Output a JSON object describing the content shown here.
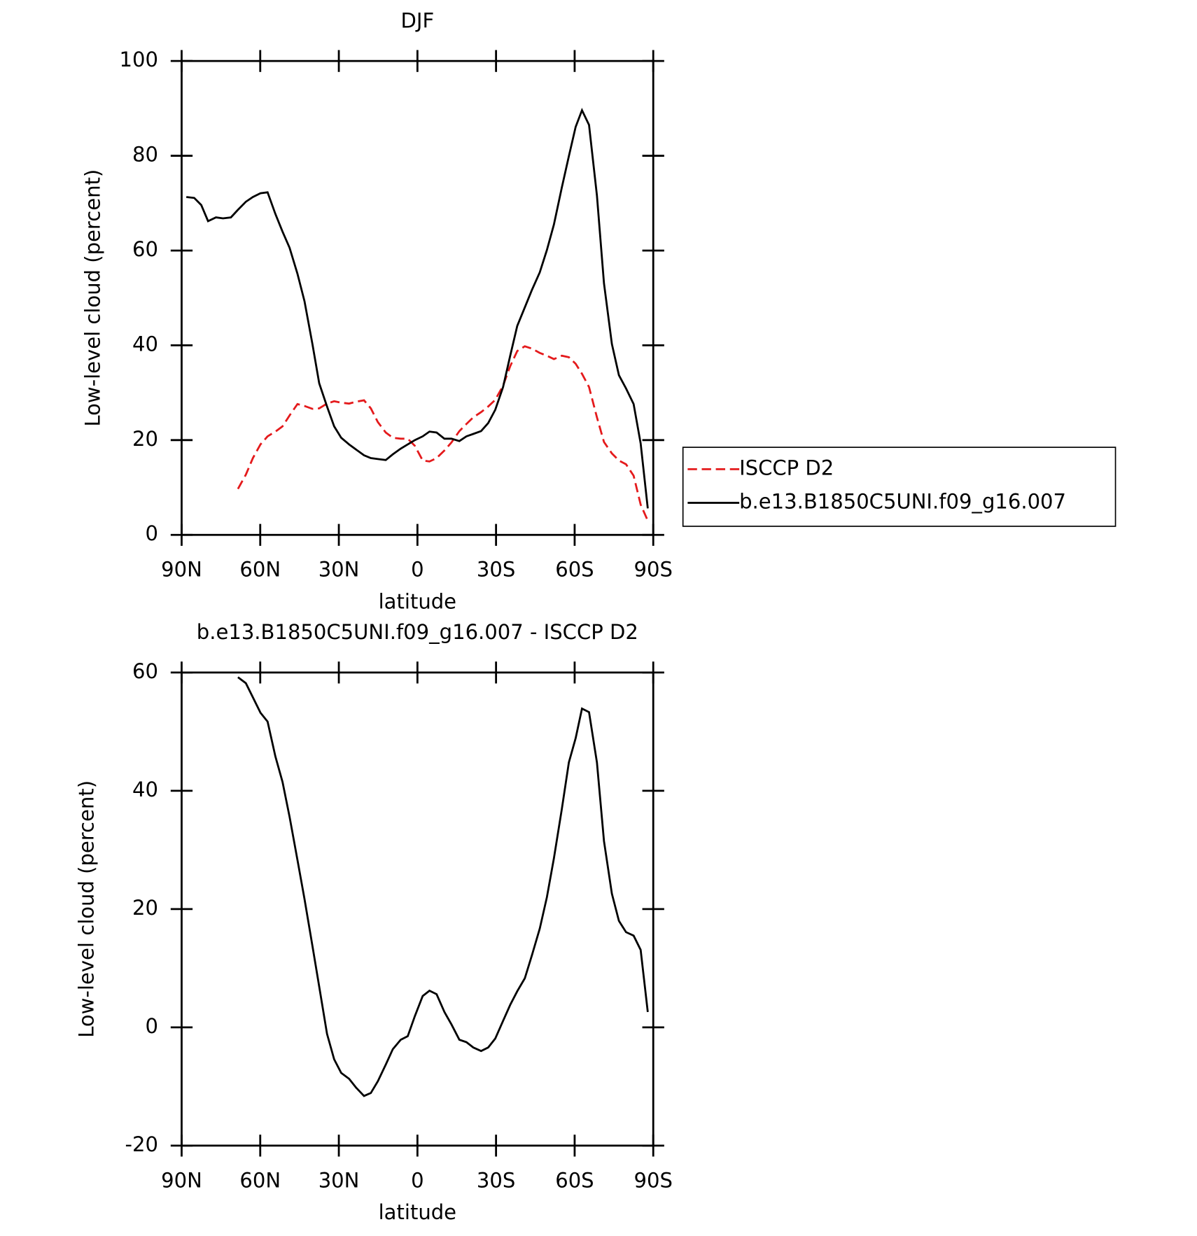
{
  "chart_data": [
    {
      "type": "line",
      "title": "DJF",
      "xlabel": "latitude",
      "ylabel": "Low-level cloud (percent)",
      "xlim": [
        90,
        -90
      ],
      "ylim": [
        0,
        100
      ],
      "xticks": [
        {
          "value": 90,
          "label": "90N"
        },
        {
          "value": 60,
          "label": "60N"
        },
        {
          "value": 30,
          "label": "30N"
        },
        0,
        {
          "value": -30,
          "label": "30S"
        },
        {
          "value": -60,
          "label": "60S"
        },
        {
          "value": -90,
          "label": "90S"
        }
      ],
      "yticks": [
        0,
        20,
        40,
        60,
        80,
        100
      ],
      "legend": "right",
      "series": [
        {
          "name": "ISCCP D2",
          "color": "#e41a1c",
          "dash": true,
          "x": [
            68.5,
            65.5,
            62.8,
            59.9,
            57.2,
            54.2,
            51.5,
            48.8,
            45.8,
            43.1,
            40.1,
            37.5,
            34.5,
            31.8,
            29.1,
            26.1,
            23.4,
            20.4,
            17.8,
            15.1,
            12.1,
            9.4,
            6.4,
            3.7,
            1.0,
            -2.0,
            -4.6,
            -7.3,
            -10.3,
            -13.0,
            -16.0,
            -18.7,
            -21.3,
            -24.3,
            -27.0,
            -29.7,
            -32.7,
            -35.4,
            -38.1,
            -41.0,
            -43.7,
            -46.7,
            -49.4,
            -52.1,
            -55.1,
            -57.8,
            -60.4,
            -62.8,
            -65.5,
            -68.5,
            -71.2,
            -74.2,
            -76.9,
            -79.6,
            -82.5,
            -85.2,
            -87.9
          ],
          "values": [
            9.7,
            12.7,
            16.2,
            19.1,
            20.8,
            21.8,
            22.9,
            25.2,
            27.6,
            27.2,
            26.6,
            26.7,
            27.7,
            28.2,
            27.9,
            27.7,
            28.1,
            28.4,
            26.7,
            23.8,
            21.6,
            20.5,
            20.3,
            20.3,
            18.8,
            15.7,
            15.5,
            16.2,
            17.8,
            19.5,
            21.9,
            23.4,
            24.8,
            25.9,
            27.1,
            28.5,
            31.5,
            35.6,
            38.8,
            39.8,
            39.3,
            38.4,
            37.8,
            37.1,
            37.8,
            37.5,
            36.1,
            34.0,
            31.2,
            24.8,
            19.6,
            17.2,
            15.7,
            14.9,
            12.5,
            6.4,
            3.0
          ]
        },
        {
          "name": "b.e13.B1850C5UNI.f09_g16.007",
          "color": "#000000",
          "dash": false,
          "x": [
            88.2,
            85.2,
            82.5,
            79.9,
            76.9,
            74.2,
            71.2,
            68.5,
            65.5,
            62.8,
            59.9,
            57.2,
            54.2,
            51.5,
            48.8,
            45.8,
            43.1,
            40.1,
            37.5,
            34.5,
            31.8,
            29.1,
            26.1,
            23.4,
            20.4,
            17.8,
            15.1,
            12.1,
            9.4,
            6.4,
            3.7,
            1.0,
            -2.0,
            -4.6,
            -7.3,
            -10.3,
            -13.0,
            -16.0,
            -18.7,
            -21.3,
            -24.3,
            -27.0,
            -29.7,
            -32.7,
            -35.4,
            -38.1,
            -41.0,
            -43.7,
            -46.7,
            -49.4,
            -52.1,
            -55.1,
            -57.8,
            -60.4,
            -62.8,
            -65.5,
            -68.5,
            -71.2,
            -74.2,
            -76.9,
            -79.6,
            -82.5,
            -85.2,
            -87.9
          ],
          "values": [
            71.3,
            71.1,
            69.6,
            66.2,
            67.0,
            66.8,
            67.0,
            68.6,
            70.3,
            71.3,
            72.1,
            72.3,
            67.7,
            64.0,
            60.6,
            55.1,
            49.3,
            40.3,
            32.0,
            27.1,
            22.9,
            20.5,
            19.1,
            18.0,
            16.8,
            16.2,
            16.0,
            15.8,
            17.0,
            18.2,
            19.1,
            20.0,
            20.8,
            21.8,
            21.6,
            20.3,
            20.3,
            19.8,
            20.8,
            21.3,
            21.9,
            23.6,
            26.4,
            31.2,
            37.8,
            44.1,
            48.0,
            51.7,
            55.4,
            60.1,
            65.5,
            73.3,
            79.9,
            86.1,
            89.6,
            86.5,
            71.6,
            53.1,
            40.3,
            33.7,
            30.9,
            27.6,
            19.3,
            5.6
          ]
        }
      ]
    },
    {
      "type": "line",
      "title": "b.e13.B1850C5UNI.f09_g16.007 - ISCCP D2",
      "xlabel": "latitude",
      "ylabel": "Low-level cloud (percent)",
      "xlim": [
        90,
        -90
      ],
      "ylim": [
        -20,
        60
      ],
      "xticks": [
        {
          "value": 90,
          "label": "90N"
        },
        {
          "value": 60,
          "label": "60N"
        },
        {
          "value": 30,
          "label": "30N"
        },
        0,
        {
          "value": -30,
          "label": "30S"
        },
        {
          "value": -60,
          "label": "60S"
        },
        {
          "value": -90,
          "label": "90S"
        }
      ],
      "yticks": [
        -20,
        0,
        20,
        40,
        60
      ],
      "series": [
        {
          "color": "#000000",
          "dash": false,
          "x": [
            68.5,
            65.5,
            62.8,
            59.9,
            57.2,
            54.2,
            51.5,
            48.8,
            45.8,
            43.1,
            40.1,
            37.5,
            34.5,
            31.8,
            29.1,
            26.1,
            23.4,
            20.4,
            17.8,
            15.1,
            12.1,
            9.4,
            6.4,
            3.7,
            1.0,
            -2.0,
            -4.6,
            -7.3,
            -10.3,
            -13.0,
            -16.0,
            -18.7,
            -21.3,
            -24.3,
            -27.0,
            -29.7,
            -32.7,
            -35.4,
            -38.1,
            -41.0,
            -43.7,
            -46.7,
            -49.4,
            -52.1,
            -55.1,
            -57.8,
            -60.4,
            -62.8,
            -65.5,
            -68.5,
            -71.2,
            -74.2,
            -76.9,
            -79.6,
            -82.5,
            -85.2,
            -87.9
          ],
          "values": [
            59.2,
            58.2,
            55.8,
            53.2,
            51.7,
            45.8,
            41.5,
            35.6,
            28.3,
            21.7,
            13.8,
            6.9,
            -1.1,
            -5.4,
            -7.7,
            -8.7,
            -10.2,
            -11.6,
            -11.1,
            -9.1,
            -6.3,
            -3.7,
            -2.1,
            -1.5,
            1.9,
            5.3,
            6.2,
            5.6,
            2.6,
            0.5,
            -2.1,
            -2.5,
            -3.4,
            -4.0,
            -3.4,
            -1.9,
            1.1,
            3.8,
            6.1,
            8.3,
            12.2,
            16.7,
            22.0,
            28.6,
            36.9,
            44.8,
            48.9,
            53.9,
            53.3,
            44.8,
            31.5,
            22.6,
            18.0,
            16.1,
            15.5,
            13.1,
            2.6
          ]
        }
      ]
    }
  ]
}
